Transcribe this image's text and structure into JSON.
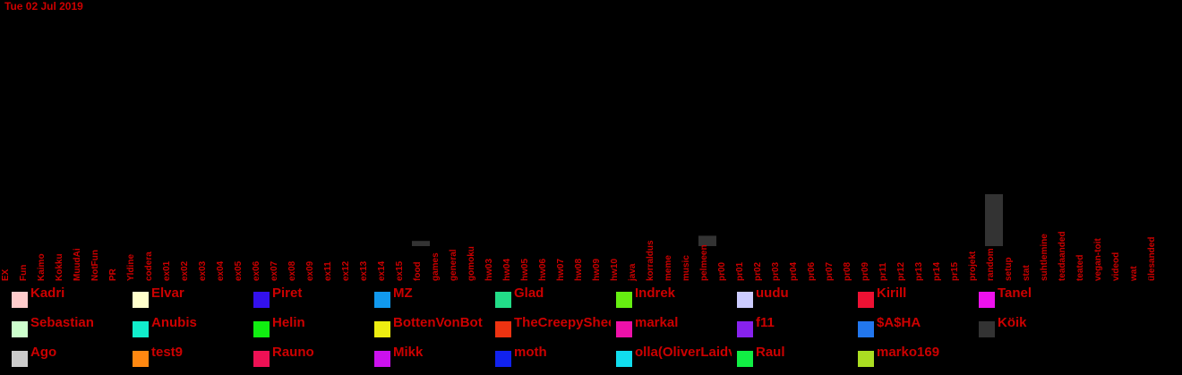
{
  "date": "Tue 02 Jul 2019",
  "chart_data": {
    "type": "bar",
    "title": "",
    "xlabel": "",
    "ylabel": "",
    "categories": [
      "EX",
      "Fun",
      "Kaimo",
      "Kokku",
      "MuudAi",
      "NotFun",
      "PR",
      "Yldine",
      "codera",
      "ex01",
      "ex02",
      "ex03",
      "ex04",
      "ex05",
      "ex06",
      "ex07",
      "ex08",
      "ex09",
      "ex11",
      "ex12",
      "ex13",
      "ex14",
      "ex15",
      "food",
      "games",
      "general",
      "gomoku",
      "hw03",
      "hw04",
      "hw05",
      "hw06",
      "hw07",
      "hw08",
      "hw09",
      "hw10",
      "java",
      "korraldus",
      "meme",
      "music",
      "pelmeen",
      "pr00",
      "pr01",
      "pr02",
      "pr03",
      "pr04",
      "pr06",
      "pr07",
      "pr08",
      "pr09",
      "pr11",
      "pr12",
      "pr13",
      "pr14",
      "pr15",
      "projekt",
      "random",
      "setup",
      "stat",
      "suhtlemine",
      "teadaanded",
      "teated",
      "vegan-toit",
      "videod",
      "wat",
      "ülesanded"
    ],
    "series": [
      {
        "name": "Köik",
        "values": [
          0,
          0,
          0,
          0,
          0,
          0,
          0,
          0,
          0,
          0,
          0,
          0,
          0,
          0,
          0,
          0,
          0,
          0,
          0,
          0,
          0,
          0,
          0,
          1,
          0,
          0,
          0,
          0,
          0,
          0,
          0,
          0,
          0,
          0,
          0,
          0,
          0,
          0,
          0,
          2,
          0,
          0,
          0,
          0,
          0,
          0,
          0,
          0,
          0,
          0,
          0,
          0,
          0,
          0,
          0,
          10,
          0,
          0,
          0,
          0,
          0,
          0,
          0,
          0,
          0
        ]
      }
    ],
    "ylim": [
      0,
      10
    ]
  },
  "legend": [
    {
      "name": "Kadri",
      "color": "#ffcccc"
    },
    {
      "name": "Elvar",
      "color": "#ffffcc"
    },
    {
      "name": "Piret",
      "color": "#3311ee"
    },
    {
      "name": "MZ",
      "color": "#1199ee"
    },
    {
      "name": "Glad",
      "color": "#22dd88"
    },
    {
      "name": "Indrek",
      "color": "#66ee11"
    },
    {
      "name": "uudu",
      "color": "#ccccff"
    },
    {
      "name": "Kirill",
      "color": "#ee1133"
    },
    {
      "name": "Tanel",
      "color": "#ee11ee"
    },
    {
      "name": "Sebastian",
      "color": "#ccffcc"
    },
    {
      "name": "Anubis",
      "color": "#11eecc"
    },
    {
      "name": "Helin",
      "color": "#11ee11"
    },
    {
      "name": "BottenVonBot",
      "color": "#eeee11"
    },
    {
      "name": "TheCreepySheep",
      "color": "#ee3311"
    },
    {
      "name": "markal",
      "color": "#ee11aa"
    },
    {
      "name": "f11",
      "color": "#8822ee"
    },
    {
      "name": "$A$HA",
      "color": "#2277ee"
    },
    {
      "name": "Köik",
      "color": "#333333"
    },
    {
      "name": "Ago",
      "color": "#cccccc"
    },
    {
      "name": "test9",
      "color": "#ff8811"
    },
    {
      "name": "Rauno",
      "color": "#ee1155"
    },
    {
      "name": "Mikk",
      "color": "#cc11ee"
    },
    {
      "name": "moth",
      "color": "#1122ee"
    },
    {
      "name": "olla(OliverLaidvee)",
      "color": "#11ddee"
    },
    {
      "name": "Raul",
      "color": "#11ee44"
    },
    {
      "name": "marko169",
      "color": "#aadd22"
    }
  ]
}
